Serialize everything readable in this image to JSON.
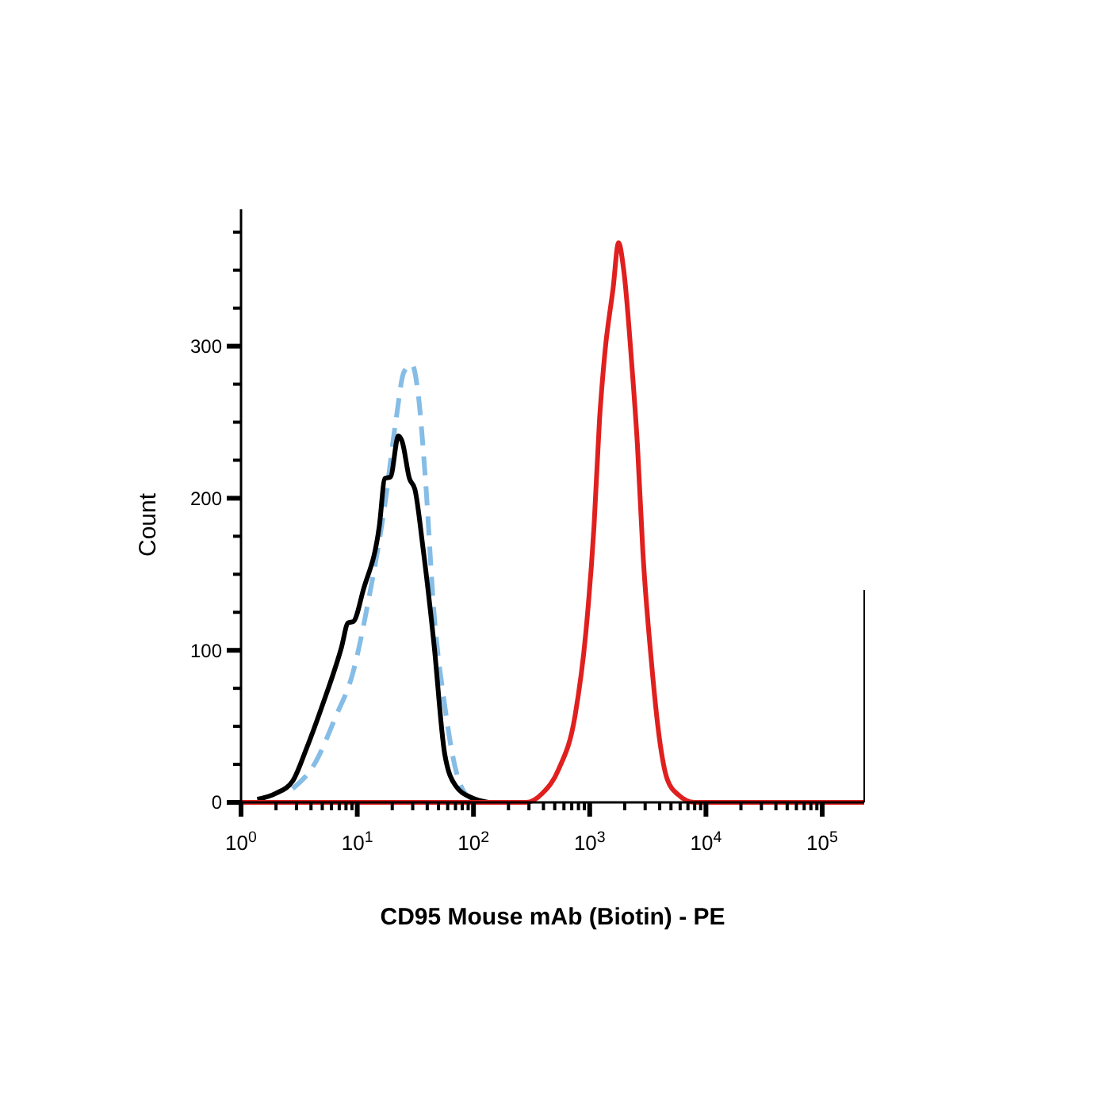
{
  "chart_data": {
    "type": "line",
    "xlabel": "CD95 Mouse mAb (Biotin) - PE",
    "ylabel": "Count",
    "log": "x",
    "grid": false,
    "marker": "none",
    "xlim": [
      1,
      230000
    ],
    "ylim": [
      0,
      390
    ],
    "xticks": [
      {
        "value": 1,
        "label": "10$^{0}$"
      },
      {
        "value": 2,
        "label": null
      },
      {
        "value": 3,
        "label": null
      },
      {
        "value": 4,
        "label": null
      },
      {
        "value": 5,
        "label": null
      },
      {
        "value": 6,
        "label": null
      },
      {
        "value": 7,
        "label": null
      },
      {
        "value": 8,
        "label": null
      },
      {
        "value": 9,
        "label": null
      },
      {
        "value": 10,
        "label": "10$^{1}$"
      },
      {
        "value": 20,
        "label": null
      },
      {
        "value": 30,
        "label": null
      },
      {
        "value": 40,
        "label": null
      },
      {
        "value": 50,
        "label": null
      },
      {
        "value": 60,
        "label": null
      },
      {
        "value": 70,
        "label": null
      },
      {
        "value": 80,
        "label": null
      },
      {
        "value": 90,
        "label": null
      },
      {
        "value": 100,
        "label": "10$^{2}$"
      },
      {
        "value": 200,
        "label": null
      },
      {
        "value": 300,
        "label": null
      },
      {
        "value": 400,
        "label": null
      },
      {
        "value": 500,
        "label": null
      },
      {
        "value": 600,
        "label": null
      },
      {
        "value": 700,
        "label": null
      },
      {
        "value": 800,
        "label": null
      },
      {
        "value": 900,
        "label": null
      },
      {
        "value": 1000,
        "label": "10$^{3}$"
      },
      {
        "value": 2000,
        "label": null
      },
      {
        "value": 3000,
        "label": null
      },
      {
        "value": 4000,
        "label": null
      },
      {
        "value": 5000,
        "label": null
      },
      {
        "value": 6000,
        "label": null
      },
      {
        "value": 7000,
        "label": null
      },
      {
        "value": 8000,
        "label": null
      },
      {
        "value": 9000,
        "label": null
      },
      {
        "value": 10000,
        "label": "10$^{4}$"
      },
      {
        "value": 20000,
        "label": null
      },
      {
        "value": 30000,
        "label": null
      },
      {
        "value": 40000,
        "label": null
      },
      {
        "value": 50000,
        "label": null
      },
      {
        "value": 60000,
        "label": null
      },
      {
        "value": 70000,
        "label": null
      },
      {
        "value": 80000,
        "label": null
      },
      {
        "value": 90000,
        "label": null
      },
      {
        "value": 100000,
        "label": "10$^{5}$"
      }
    ],
    "yticks": [
      0,
      {
        "value": 25,
        "label": null
      },
      {
        "value": 50,
        "label": null
      },
      {
        "value": 75,
        "label": null
      },
      100,
      {
        "value": 125,
        "label": null
      },
      {
        "value": 150,
        "label": null
      },
      {
        "value": 175,
        "label": null
      },
      200,
      {
        "value": 225,
        "label": null
      },
      {
        "value": 250,
        "label": null
      },
      {
        "value": 275,
        "label": null
      },
      300,
      {
        "value": 325,
        "label": null
      },
      {
        "value": 350,
        "label": null
      },
      {
        "value": 375,
        "label": null
      }
    ],
    "series": [
      {
        "color": "#85bde6",
        "line_style": "dashed",
        "x": [
          2.78,
          4.27,
          6.58,
          9.08,
          12.5,
          17.3,
          21.5,
          25.2,
          29.6,
          33.0,
          38.8,
          45.6,
          56.5,
          70.1,
          86.9,
          120
        ],
        "values": [
          9,
          25,
          57,
          84,
          133,
          196,
          251,
          283,
          288,
          272,
          210,
          126,
          64,
          22,
          5,
          0
        ]
      },
      {
        "color": "#000000",
        "line_style": "solid",
        "x": [
          1.38,
          2.01,
          2.78,
          3.64,
          5.02,
          7.32,
          8.33,
          9.27,
          11.3,
          15.5,
          17.3,
          19.3,
          22.6,
          24.4,
          28.1,
          31.3,
          36.7,
          45.6,
          56.5,
          70.1,
          96.8,
          134
        ],
        "values": [
          2,
          6,
          14,
          35,
          64,
          102,
          118,
          119,
          140,
          182,
          213,
          214,
          241,
          237,
          213,
          206,
          168,
          105,
          32,
          11,
          3,
          0
        ]
      },
      {
        "color": "#e0201f",
        "line_style": "solid",
        "x": [
          1,
          284,
          392,
          542,
          748,
          927,
          1090,
          1213,
          1352,
          1589,
          1770,
          1969,
          2312,
          2578,
          2870,
          3373,
          3963,
          4656,
          5780,
          7980,
          230000
        ],
        "values": [
          0,
          0,
          6,
          22,
          57,
          112,
          182,
          251,
          296,
          338,
          368,
          349,
          286,
          234,
          164,
          95,
          43,
          15,
          5,
          0,
          0
        ]
      }
    ]
  }
}
